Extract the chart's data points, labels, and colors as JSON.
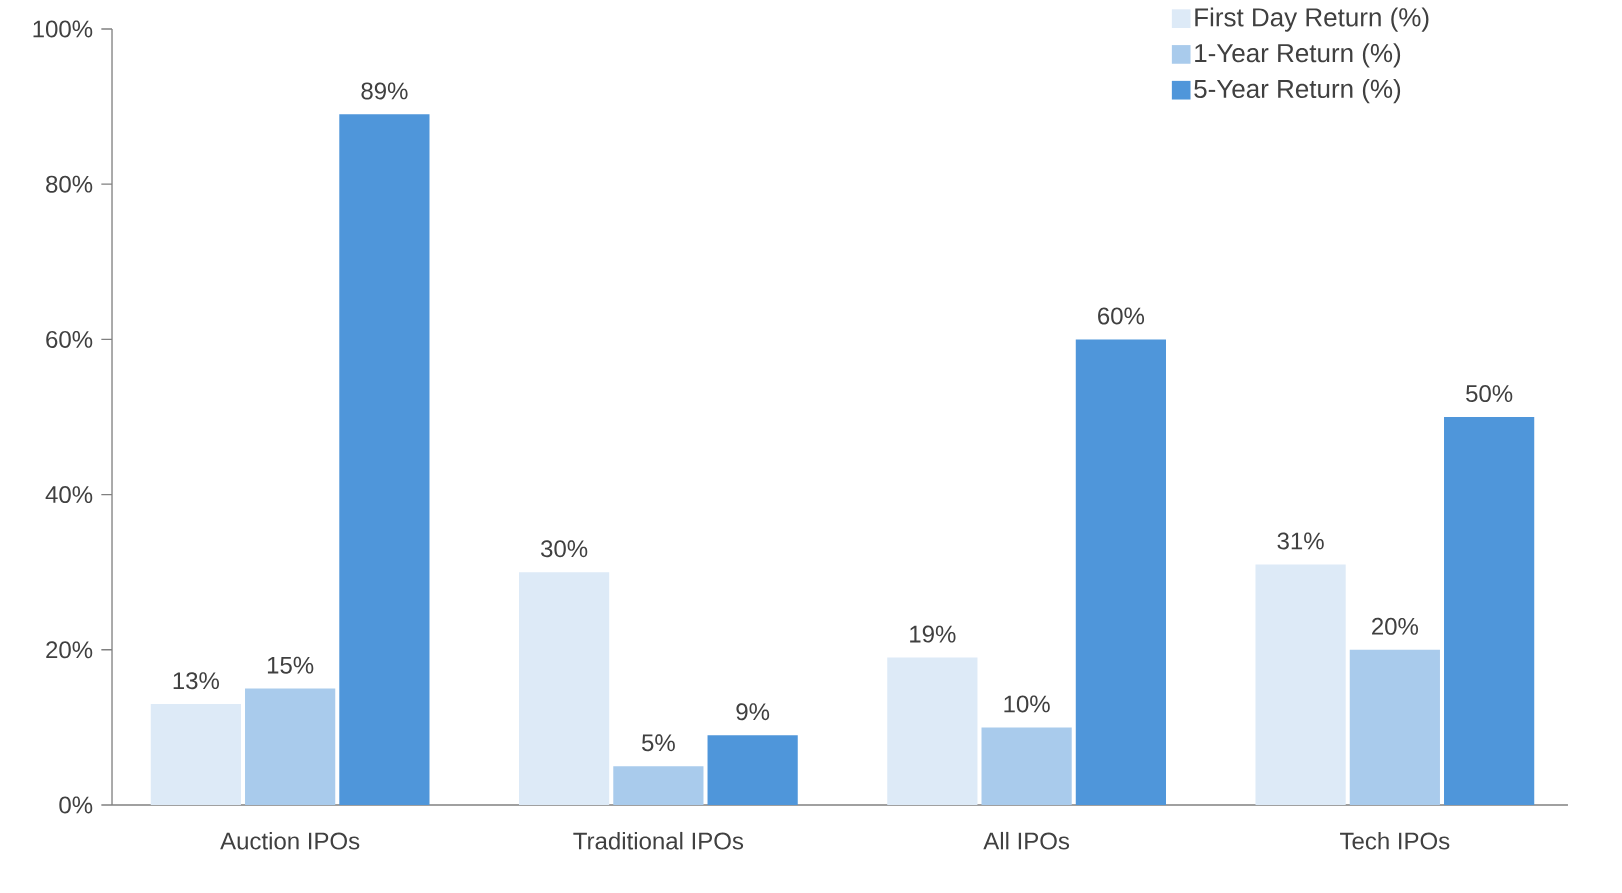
{
  "chart_data": {
    "type": "bar",
    "categories": [
      "Auction IPOs",
      "Traditional IPOs",
      "All IPOs",
      "Tech IPOs"
    ],
    "series": [
      {
        "name": "First Day Return (%)",
        "color": "#ddeaf7",
        "values": [
          13,
          30,
          19,
          31
        ],
        "value_labels": [
          "13%",
          "30%",
          "19%",
          "31%"
        ]
      },
      {
        "name": "1-Year Return (%)",
        "color": "#a9cbec",
        "values": [
          15,
          5,
          10,
          20
        ],
        "value_labels": [
          "15%",
          "5%",
          "10%",
          "20%"
        ]
      },
      {
        "name": "5-Year Return (%)",
        "color": "#4f96da",
        "values": [
          89,
          9,
          60,
          50
        ],
        "value_labels": [
          "89%",
          "9%",
          "60%",
          "50%"
        ]
      }
    ],
    "ylim": [
      0,
      100
    ],
    "yticks": [
      {
        "value": 0,
        "label": "0%"
      },
      {
        "value": 20,
        "label": "20%"
      },
      {
        "value": 40,
        "label": "40%"
      },
      {
        "value": 60,
        "label": "60%"
      },
      {
        "value": 80,
        "label": "80%"
      },
      {
        "value": 100,
        "label": "100%"
      }
    ],
    "grid": false,
    "legend": "top right"
  }
}
